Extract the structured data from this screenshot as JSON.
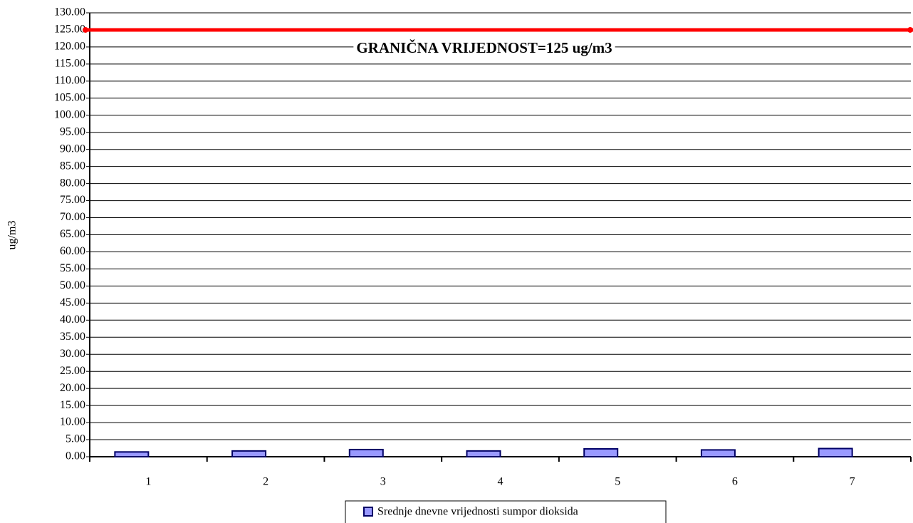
{
  "chart_data": {
    "type": "bar",
    "y_label": "ug/m3",
    "categories": [
      "1",
      "2",
      "3",
      "4",
      "5",
      "6",
      "7"
    ],
    "series": [
      {
        "name": "Srednje dnevne vrijednosti sumpor dioksida",
        "color": "#9999ff",
        "values": [
          1.4,
          1.7,
          2.1,
          1.7,
          2.3,
          2.0,
          2.4
        ]
      }
    ],
    "ylim": [
      0,
      130
    ],
    "yticks": [
      {
        "value": 0,
        "label": "0.00"
      },
      {
        "value": 5,
        "label": "5.00"
      },
      {
        "value": 10,
        "label": "10.00"
      },
      {
        "value": 15,
        "label": "15.00"
      },
      {
        "value": 20,
        "label": "20.00"
      },
      {
        "value": 25,
        "label": "25.00"
      },
      {
        "value": 30,
        "label": "30.00"
      },
      {
        "value": 35,
        "label": "35.00"
      },
      {
        "value": 40,
        "label": "40.00"
      },
      {
        "value": 45,
        "label": "45.00"
      },
      {
        "value": 50,
        "label": "50.00"
      },
      {
        "value": 55,
        "label": "55.00"
      },
      {
        "value": 60,
        "label": "60.00"
      },
      {
        "value": 65,
        "label": "65.00"
      },
      {
        "value": 70,
        "label": "70.00"
      },
      {
        "value": 75,
        "label": "75.00"
      },
      {
        "value": 80,
        "label": "80.00"
      },
      {
        "value": 85,
        "label": "85.00"
      },
      {
        "value": 90,
        "label": "90.00"
      },
      {
        "value": 95,
        "label": "95.00"
      },
      {
        "value": 100,
        "label": "100.00"
      },
      {
        "value": 105,
        "label": "105.00"
      },
      {
        "value": 110,
        "label": "110.00"
      },
      {
        "value": 115,
        "label": "115.00"
      },
      {
        "value": 120,
        "label": "120.00"
      },
      {
        "value": 125,
        "label": "125.00"
      },
      {
        "value": 130,
        "label": "130.00"
      }
    ],
    "grid": true,
    "reference_line": {
      "value": 125,
      "color": "#ff0000",
      "label": "GRANIČNA VRIJEDNOST=125 ug/m3"
    },
    "legend": "bottom"
  }
}
